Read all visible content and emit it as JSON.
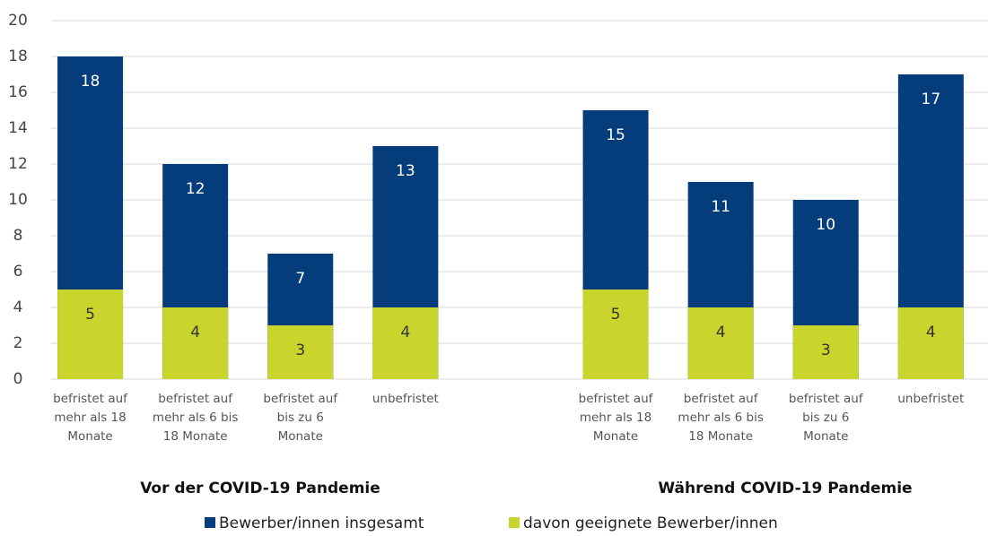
{
  "chart_data": {
    "type": "bar",
    "categories": [
      "befristet auf\nmehr als 18\nMonate",
      "befristet auf\nmehr als 6 bis\n18 Monate",
      "befristet auf\nbis zu 6\nMonate",
      "unbefristet",
      null,
      "befristet auf\nmehr als 18\nMonate",
      "befristet auf\nmehr als 6 bis\n18 Monate",
      "befristet auf\nbis zu 6\nMonate",
      "unbefristet"
    ],
    "groups": [
      "Vor der COVID-19 Pandemie",
      "Während COVID-19 Pandemie"
    ],
    "series": [
      {
        "name": "Bewerber/innen insgesamt",
        "color": "#043c7c",
        "values": [
          18,
          12,
          7,
          13,
          null,
          15,
          11,
          10,
          17
        ]
      },
      {
        "name": "davon geeignete Bewerber/innen",
        "color": "#c9d52c",
        "values": [
          5,
          4,
          3,
          4,
          null,
          5,
          4,
          3,
          4
        ]
      }
    ],
    "ylim": [
      0,
      20
    ],
    "yticks": [
      0,
      2,
      4,
      6,
      8,
      10,
      12,
      14,
      16,
      18,
      20
    ],
    "grid": true,
    "legend": "bottom"
  }
}
